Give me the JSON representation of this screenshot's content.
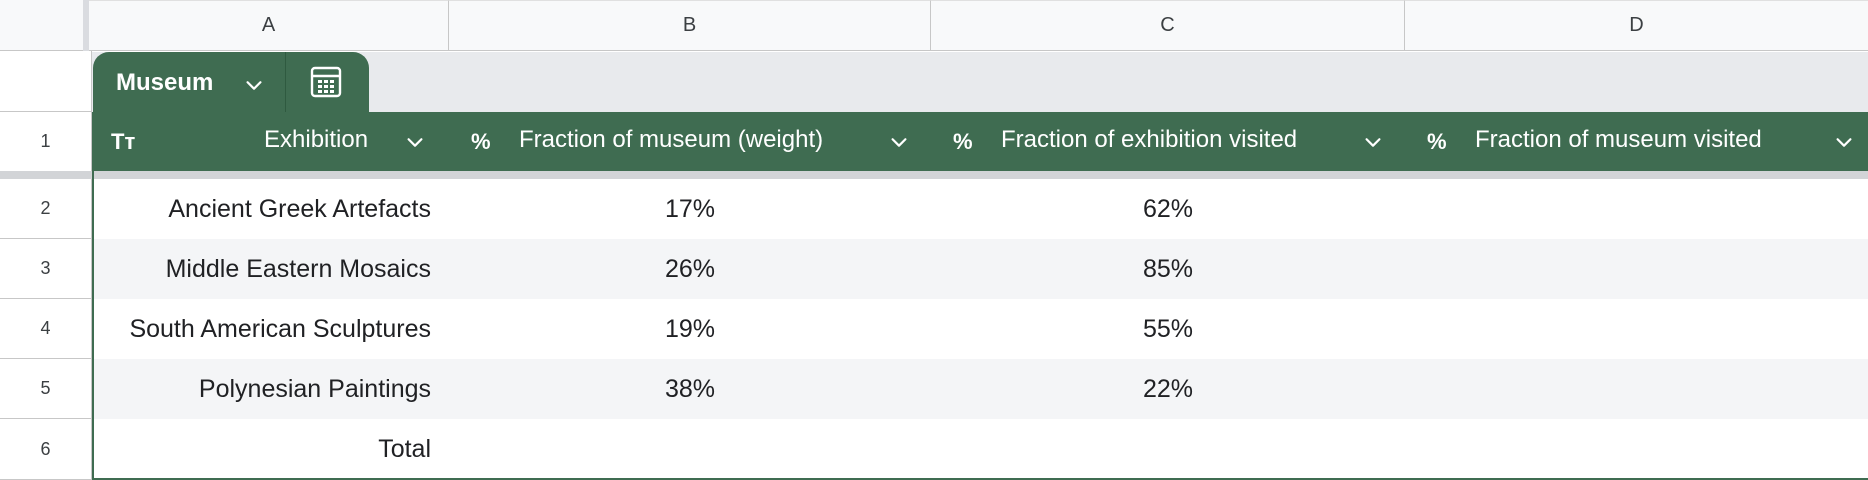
{
  "sheet": {
    "columns": [
      "A",
      "B",
      "C",
      "D"
    ],
    "rows": [
      "1",
      "2",
      "3",
      "4",
      "5",
      "6"
    ]
  },
  "table": {
    "name": "Museum",
    "headers": [
      {
        "type_icon": "Tт",
        "label": "Exhibition"
      },
      {
        "type_icon": "%",
        "label": "Fraction of museum (weight)"
      },
      {
        "type_icon": "%",
        "label": "Fraction of exhibition visited"
      },
      {
        "type_icon": "%",
        "label": "Fraction of museum visited"
      }
    ],
    "rows": [
      {
        "exhibition": "Ancient Greek Artefacts",
        "weight": "17%",
        "visited": "62%",
        "museum_visited": ""
      },
      {
        "exhibition": "Middle Eastern Mosaics",
        "weight": "26%",
        "visited": "85%",
        "museum_visited": ""
      },
      {
        "exhibition": "South American Sculptures",
        "weight": "19%",
        "visited": "55%",
        "museum_visited": ""
      },
      {
        "exhibition": "Polynesian Paintings",
        "weight": "38%",
        "visited": "22%",
        "museum_visited": ""
      },
      {
        "exhibition": "Total",
        "weight": "",
        "visited": "",
        "museum_visited": ""
      }
    ]
  },
  "colors": {
    "table_green": "#3f6c51",
    "row_alt": "#f4f5f7"
  },
  "icons": {
    "table_menu": "chevron-down-icon",
    "calc": "calculator-icon",
    "text_type": "text-type-icon",
    "percent_type": "percent-icon"
  }
}
